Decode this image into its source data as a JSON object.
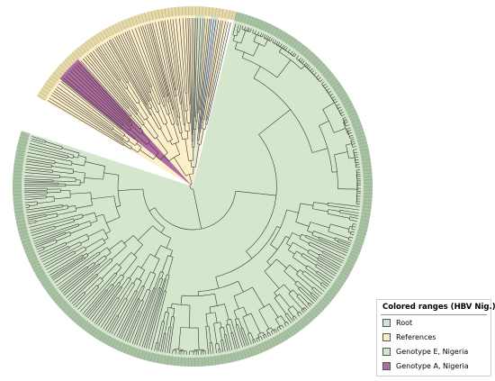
{
  "legend": {
    "title": "Colored ranges (HBV Nig.)",
    "items": [
      {
        "label": "Root",
        "color": "#d2e0e2"
      },
      {
        "label": "References",
        "color": "#fdefca"
      },
      {
        "label": "Genotype E, Nigeria",
        "color": "#d4e6cc"
      },
      {
        "label": "Genotype A, Nigeria",
        "color": "#b06ca0"
      }
    ]
  },
  "tree": {
    "layout": "circular",
    "branch_color": "#3a3a3a",
    "tip_band_color": "#a9c2a4"
  }
}
